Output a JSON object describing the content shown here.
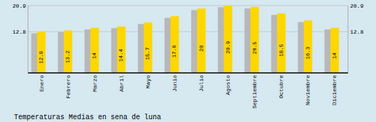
{
  "chart_data": {
    "type": "bar",
    "title": "Temperaturas Medias en sena de luna",
    "categories": [
      "Enero",
      "Febrero",
      "Marzo",
      "Abril",
      "Mayo",
      "Junio",
      "Julio",
      "Agosto",
      "Septiembre",
      "Octubre",
      "Noviembre",
      "Diciembre"
    ],
    "series": [
      {
        "color": "#B8B8B8",
        "values": [
          12.3,
          12.7,
          13.5,
          13.9,
          15.2,
          17.1,
          19.5,
          20.4,
          20.0,
          18.0,
          15.8,
          13.5
        ]
      },
      {
        "color": "#FFD700",
        "values": [
          12.8,
          13.2,
          14.0,
          14.4,
          15.7,
          17.6,
          20.0,
          20.9,
          20.5,
          18.5,
          16.3,
          14.0
        ]
      }
    ],
    "ylim": [
      0,
      20.9
    ],
    "yticks": [
      12.8,
      20.9
    ],
    "y2lim": [
      0,
      20.9
    ],
    "y2ticks": [
      12.8,
      20.9
    ],
    "grid": true,
    "data_labels": true
  }
}
